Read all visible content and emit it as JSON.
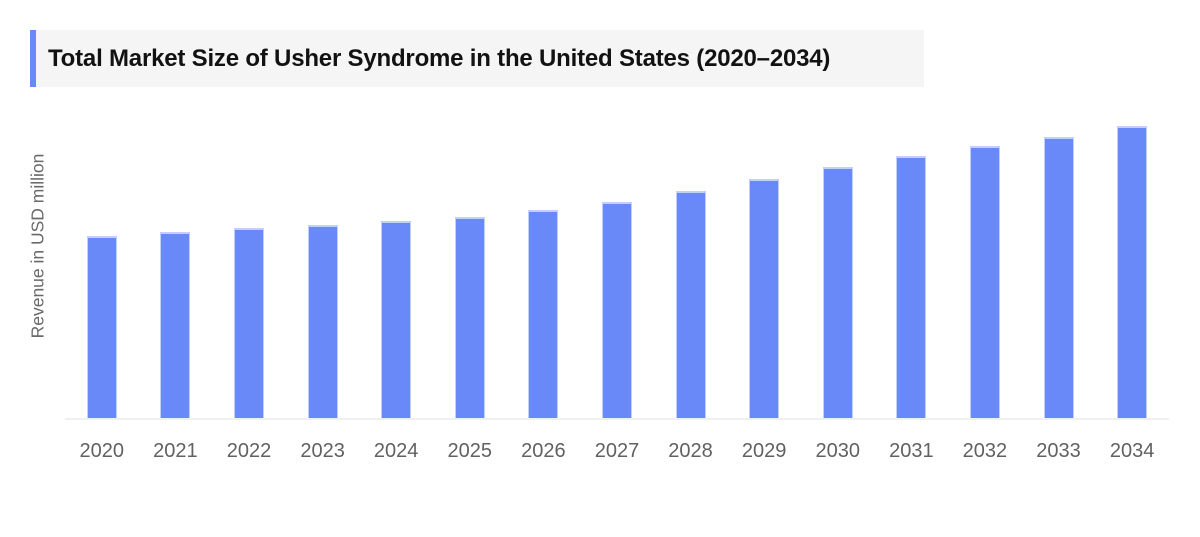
{
  "page": {
    "background": "#ffffff"
  },
  "header": {
    "title": "Total Market Size of Usher Syndrome in the United States (2020–2034)",
    "accent_color": "#6889f7",
    "strip_background": "#f5f5f6",
    "text_color": "#121212"
  },
  "chart_data": {
    "type": "bar",
    "title": "Total Market Size of Usher Syndrome in the United States (2020–2034)",
    "xlabel": "",
    "ylabel": "Revenue in USD million",
    "categories": [
      "2020",
      "2021",
      "2022",
      "2023",
      "2024",
      "2025",
      "2026",
      "2027",
      "2028",
      "2029",
      "2030",
      "2031",
      "2032",
      "2033",
      "2034"
    ],
    "values": [
      182,
      186,
      190,
      193,
      197,
      201,
      208,
      216,
      227,
      239,
      251,
      262,
      272,
      281,
      292
    ],
    "values_note": "No numeric y-axis ticks are shown in the chart; values are relative bar heights estimated in screen pixels (baseline = 0)",
    "y_axis_ticks": [],
    "grid": false,
    "legend": false,
    "bar_color": "#6889f7",
    "bar_edge_color": "#c2cffb",
    "axis_line_color": "#eef0f1",
    "tick_label_color": "#616161",
    "ylabel_color": "#6a6a6a"
  }
}
